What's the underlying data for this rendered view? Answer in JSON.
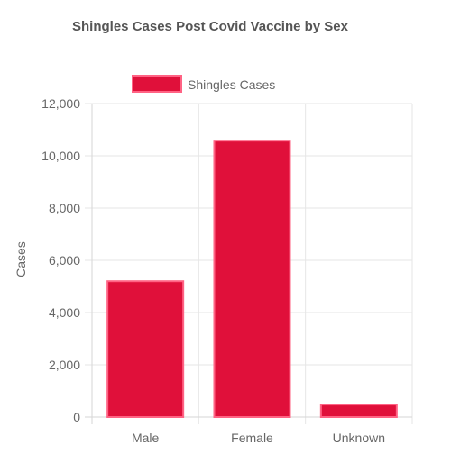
{
  "chart_data": {
    "type": "bar",
    "title": "Shingles Cases Post Covid Vaccine by Sex",
    "categories": [
      "Male",
      "Female",
      "Unknown"
    ],
    "series": [
      {
        "name": "Shingles Cases",
        "values": [
          5200,
          10580,
          480
        ]
      }
    ],
    "ylabel": "Cases",
    "xlabel": "",
    "ylim": [
      0,
      12000
    ],
    "yticks": [
      "0",
      "2,000",
      "4,000",
      "6,000",
      "8,000",
      "10,000",
      "12,000"
    ],
    "grid": true,
    "legend_position": "top",
    "colors": {
      "bar_fill": "#e0103a",
      "bar_border": "#ff6384",
      "grid": "#e6e6e6",
      "text": "#666666",
      "title": "#555555"
    }
  }
}
